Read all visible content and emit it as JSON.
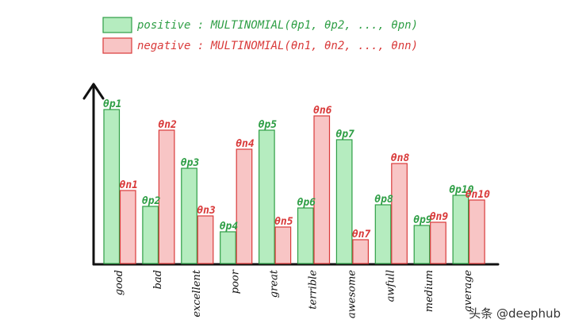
{
  "chart_data": {
    "type": "bar",
    "title": "",
    "xlabel": "",
    "ylabel": "",
    "ylim": [
      0,
      100
    ],
    "categories": [
      "good",
      "bad",
      "excellent",
      "poor",
      "great",
      "terrible",
      "awesome",
      "awfull",
      "medium",
      "average"
    ],
    "series": [
      {
        "name": "positive",
        "legend": "positive : MULTINOMIAL(θp1, θp2, ..., θpn)",
        "color": "#b5ecbf",
        "stroke": "#2e9e45",
        "label_color": "#2e9e45",
        "labels": [
          "θp1",
          "θp2",
          "θp3",
          "θp4",
          "θp5",
          "θp6",
          "θp7",
          "θp8",
          "θp9",
          "θp10"
        ],
        "values": [
          97,
          36,
          60,
          20,
          84,
          35,
          78,
          37,
          24,
          43
        ]
      },
      {
        "name": "negative",
        "legend": "negative : MULTINOMIAL(θn1, θn2, ..., θnn)",
        "color": "#f8c5c5",
        "stroke": "#d93a3a",
        "label_color": "#d93a3a",
        "labels": [
          "θn1",
          "θn2",
          "θn3",
          "θn4",
          "θn5",
          "θn6",
          "θn7",
          "θn8",
          "θn9",
          "θn10"
        ],
        "values": [
          46,
          84,
          30,
          72,
          23,
          93,
          15,
          63,
          26,
          40
        ]
      }
    ]
  },
  "watermark": "头条 @deephub"
}
